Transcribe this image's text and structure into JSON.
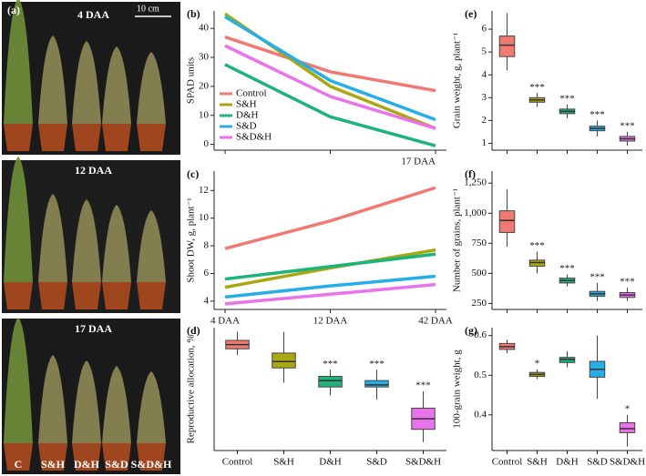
{
  "photo_panel": {
    "panel_label": "(a)",
    "scale_bar": "10 cm",
    "stages": [
      "4 DAA",
      "12 DAA",
      "17 DAA"
    ],
    "treatments": [
      "C",
      "S&H",
      "D&H",
      "S&D",
      "S&D&H"
    ]
  },
  "chart_data": [
    {
      "type": "line",
      "panel_label": "(b)",
      "y_label": "SPAD units",
      "categories": [
        null,
        null,
        "17 DAA"
      ],
      "ylim": [
        -2,
        46
      ],
      "yticks": [
        0,
        10,
        20,
        30,
        40
      ],
      "legend": "lower left",
      "series": [
        {
          "name": "Control",
          "color": "#f07a72",
          "values": [
            37,
            25,
            18.5
          ]
        },
        {
          "name": "S&H",
          "color": "#aaa812",
          "values": [
            45,
            20,
            5.5
          ]
        },
        {
          "name": "D&H",
          "color": "#1db37a",
          "values": [
            27.5,
            9.5,
            -0.5
          ]
        },
        {
          "name": "S&D",
          "color": "#25aee8",
          "values": [
            44,
            22,
            8.5
          ]
        },
        {
          "name": "S&D&H",
          "color": "#ea72ea",
          "values": [
            34,
            16.5,
            5.5
          ]
        }
      ]
    },
    {
      "type": "line",
      "panel_label": "(c)",
      "y_label": "Shoot DW, g, plant⁻¹",
      "categories": [
        "4 DAA",
        "12 DAA",
        "42 DAA"
      ],
      "ylim": [
        3.4,
        13.4
      ],
      "yticks": [
        4,
        6,
        8,
        10,
        12
      ],
      "series": [
        {
          "name": "Control",
          "color": "#f07a72",
          "values": [
            7.8,
            9.8,
            12.2
          ]
        },
        {
          "name": "S&H",
          "color": "#aaa812",
          "values": [
            5.0,
            6.4,
            7.7
          ]
        },
        {
          "name": "D&H",
          "color": "#1db37a",
          "values": [
            5.6,
            6.5,
            7.4
          ]
        },
        {
          "name": "S&D",
          "color": "#25aee8",
          "values": [
            4.3,
            5.1,
            5.8
          ]
        },
        {
          "name": "S&D&H",
          "color": "#ea72ea",
          "values": [
            3.8,
            4.5,
            5.2
          ]
        }
      ]
    },
    {
      "type": "box",
      "panel_label": "(d)",
      "y_label": "Reproductive allocation, %",
      "categories": [
        "Control",
        "S&H",
        "D&H",
        "S&D",
        "S&D&H"
      ],
      "ylim": [
        21,
        50
      ],
      "colors": [
        "#f07a72",
        "#aaa812",
        "#1db37a",
        "#25aee8",
        "#ea72ea"
      ],
      "values": [
        [
          43.5,
          45,
          46,
          47,
          49
        ],
        [
          37,
          40.5,
          42,
          44,
          49
        ],
        [
          34,
          36,
          37.5,
          38.5,
          40
        ],
        [
          33,
          36,
          36.5,
          37.5,
          40
        ],
        [
          23,
          26,
          28.5,
          31,
          35
        ]
      ],
      "annotations": [
        null,
        null,
        "***",
        "***",
        "***"
      ]
    },
    {
      "type": "box",
      "panel_label": "(e)",
      "y_label": "Grain weight, g, plant⁻¹",
      "categories": [
        null,
        null,
        null,
        null,
        null
      ],
      "ylim": [
        0.7,
        6.8
      ],
      "yticks": [
        1,
        2,
        3,
        4,
        5,
        6
      ],
      "colors": [
        "#f07a72",
        "#aaa812",
        "#1db37a",
        "#25aee8",
        "#ea72ea"
      ],
      "values": [
        [
          4.2,
          4.8,
          5.3,
          5.7,
          6.7
        ],
        [
          2.6,
          2.8,
          2.9,
          3.0,
          3.2
        ],
        [
          2.1,
          2.3,
          2.4,
          2.5,
          2.7
        ],
        [
          1.3,
          1.55,
          1.65,
          1.75,
          2.0
        ],
        [
          0.9,
          1.1,
          1.2,
          1.3,
          1.5
        ]
      ],
      "annotations": [
        null,
        "***",
        "***",
        "***",
        "***"
      ]
    },
    {
      "type": "box",
      "panel_label": "(f)",
      "y_label": "Number of grains, plant⁻¹",
      "categories": [
        null,
        null,
        null,
        null,
        null
      ],
      "ylim": [
        200,
        1350
      ],
      "yticks": [
        250,
        500,
        750,
        {
          "value": 1000,
          "label": "1,000"
        },
        {
          "value": 1250,
          "label": "1,250"
        }
      ],
      "colors": [
        "#f07a72",
        "#aaa812",
        "#1db37a",
        "#25aee8",
        "#ea72ea"
      ],
      "values": [
        [
          720,
          840,
          940,
          1020,
          1200
        ],
        [
          500,
          560,
          590,
          610,
          680
        ],
        [
          390,
          420,
          440,
          460,
          490
        ],
        [
          270,
          310,
          330,
          350,
          420
        ],
        [
          270,
          300,
          320,
          340,
          380
        ]
      ],
      "annotations": [
        null,
        "***",
        "***",
        "***",
        "***"
      ]
    },
    {
      "type": "box",
      "panel_label": "(g)",
      "y_label": "100-grain weight, g",
      "categories": [
        "Control",
        "S&H",
        "D&H",
        "S&D",
        "S&D&H"
      ],
      "ylim": [
        0.31,
        0.62
      ],
      "yticks": [
        0.4,
        0.5,
        0.6
      ],
      "colors": [
        "#f07a72",
        "#aaa812",
        "#1db37a",
        "#25aee8",
        "#ea72ea"
      ],
      "values": [
        [
          0.555,
          0.565,
          0.572,
          0.58,
          0.59
        ],
        [
          0.49,
          0.497,
          0.502,
          0.507,
          0.515
        ],
        [
          0.52,
          0.532,
          0.54,
          0.545,
          0.56
        ],
        [
          0.44,
          0.495,
          0.515,
          0.535,
          0.6
        ],
        [
          0.32,
          0.355,
          0.365,
          0.38,
          0.4
        ]
      ],
      "annotations": [
        null,
        "*",
        null,
        null,
        "*"
      ]
    }
  ]
}
